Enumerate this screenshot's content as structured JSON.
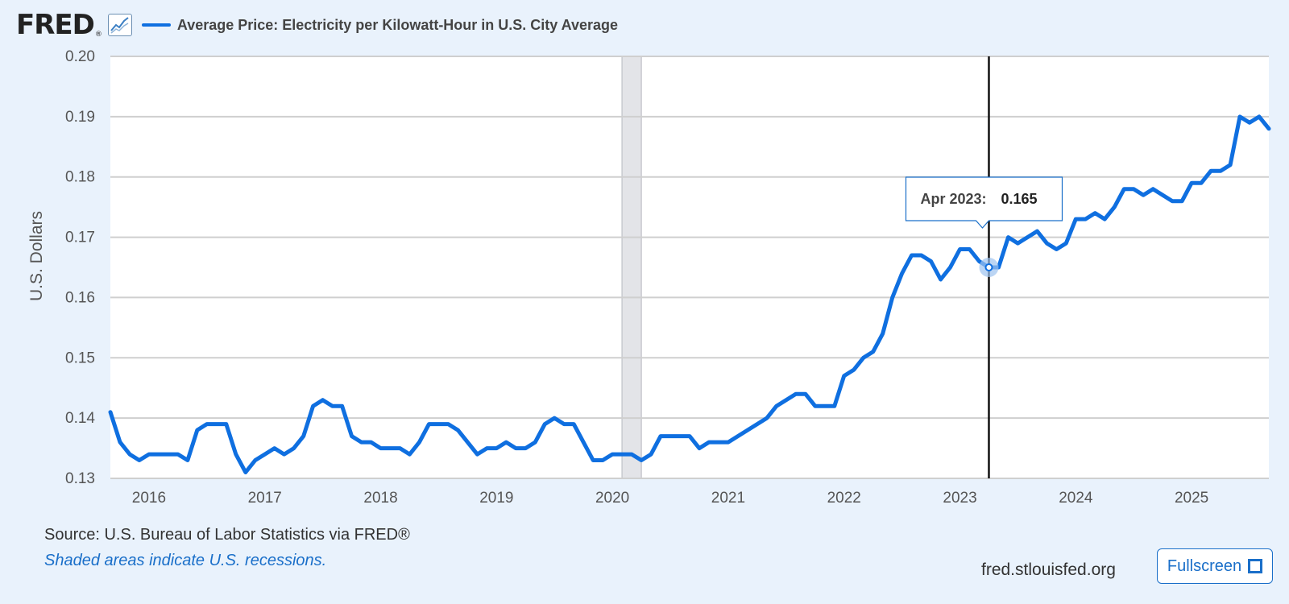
{
  "header": {
    "logo": "FRED",
    "logo_mark": "®",
    "legend_label": "Average Price: Electricity per Kilowatt-Hour in U.S. City Average"
  },
  "tooltip": {
    "date": "Apr 2023:",
    "value": "0.165"
  },
  "footer": {
    "source": "Source: U.S. Bureau of Labor Statistics via FRED®",
    "note": "Shaded areas indicate U.S. recessions.",
    "site": "fred.stlouisfed.org",
    "fullscreen_label": "Fullscreen"
  },
  "colors": {
    "line": "#0f6fe0",
    "recession": "#e3e4e8",
    "background": "#e9f2fc"
  },
  "chart_data": {
    "type": "line",
    "title": "",
    "xlabel": "",
    "ylabel": "U.S. Dollars",
    "x_ticks": [
      "2016",
      "2017",
      "2018",
      "2019",
      "2020",
      "2021",
      "2022",
      "2023",
      "2024",
      "2025"
    ],
    "y_ticks": [
      "0.13",
      "0.14",
      "0.15",
      "0.16",
      "0.17",
      "0.18",
      "0.19",
      "0.20"
    ],
    "ylim": [
      0.13,
      0.2
    ],
    "xlim": [
      "2015-09",
      "2025-09"
    ],
    "grid": "horizontal",
    "legend_position": "top-left",
    "recessions": [
      {
        "start": "2020-02",
        "end": "2020-04"
      }
    ],
    "highlight": {
      "date": "2023-04",
      "value": 0.165
    },
    "series": [
      {
        "name": "Average Price: Electricity per Kilowatt-Hour in U.S. City Average",
        "points": [
          [
            "2015-09",
            0.141
          ],
          [
            "2015-10",
            0.136
          ],
          [
            "2015-11",
            0.134
          ],
          [
            "2015-12",
            0.133
          ],
          [
            "2016-01",
            0.134
          ],
          [
            "2016-02",
            0.134
          ],
          [
            "2016-03",
            0.134
          ],
          [
            "2016-04",
            0.134
          ],
          [
            "2016-05",
            0.133
          ],
          [
            "2016-06",
            0.138
          ],
          [
            "2016-07",
            0.139
          ],
          [
            "2016-08",
            0.139
          ],
          [
            "2016-09",
            0.139
          ],
          [
            "2016-10",
            0.134
          ],
          [
            "2016-11",
            0.131
          ],
          [
            "2016-12",
            0.133
          ],
          [
            "2017-01",
            0.134
          ],
          [
            "2017-02",
            0.135
          ],
          [
            "2017-03",
            0.134
          ],
          [
            "2017-04",
            0.135
          ],
          [
            "2017-05",
            0.137
          ],
          [
            "2017-06",
            0.142
          ],
          [
            "2017-07",
            0.143
          ],
          [
            "2017-08",
            0.142
          ],
          [
            "2017-09",
            0.142
          ],
          [
            "2017-10",
            0.137
          ],
          [
            "2017-11",
            0.136
          ],
          [
            "2017-12",
            0.136
          ],
          [
            "2018-01",
            0.135
          ],
          [
            "2018-02",
            0.135
          ],
          [
            "2018-03",
            0.135
          ],
          [
            "2018-04",
            0.134
          ],
          [
            "2018-05",
            0.136
          ],
          [
            "2018-06",
            0.139
          ],
          [
            "2018-07",
            0.139
          ],
          [
            "2018-08",
            0.139
          ],
          [
            "2018-09",
            0.138
          ],
          [
            "2018-10",
            0.136
          ],
          [
            "2018-11",
            0.134
          ],
          [
            "2018-12",
            0.135
          ],
          [
            "2019-01",
            0.135
          ],
          [
            "2019-02",
            0.136
          ],
          [
            "2019-03",
            0.135
          ],
          [
            "2019-04",
            0.135
          ],
          [
            "2019-05",
            0.136
          ],
          [
            "2019-06",
            0.139
          ],
          [
            "2019-07",
            0.14
          ],
          [
            "2019-08",
            0.139
          ],
          [
            "2019-09",
            0.139
          ],
          [
            "2019-10",
            0.136
          ],
          [
            "2019-11",
            0.133
          ],
          [
            "2019-12",
            0.133
          ],
          [
            "2020-01",
            0.134
          ],
          [
            "2020-02",
            0.134
          ],
          [
            "2020-03",
            0.134
          ],
          [
            "2020-04",
            0.133
          ],
          [
            "2020-05",
            0.134
          ],
          [
            "2020-06",
            0.137
          ],
          [
            "2020-07",
            0.137
          ],
          [
            "2020-08",
            0.137
          ],
          [
            "2020-09",
            0.137
          ],
          [
            "2020-10",
            0.135
          ],
          [
            "2020-11",
            0.136
          ],
          [
            "2020-12",
            0.136
          ],
          [
            "2021-01",
            0.136
          ],
          [
            "2021-02",
            0.137
          ],
          [
            "2021-03",
            0.138
          ],
          [
            "2021-04",
            0.139
          ],
          [
            "2021-05",
            0.14
          ],
          [
            "2021-06",
            0.142
          ],
          [
            "2021-07",
            0.143
          ],
          [
            "2021-08",
            0.144
          ],
          [
            "2021-09",
            0.144
          ],
          [
            "2021-10",
            0.142
          ],
          [
            "2021-11",
            0.142
          ],
          [
            "2021-12",
            0.142
          ],
          [
            "2022-01",
            0.147
          ],
          [
            "2022-02",
            0.148
          ],
          [
            "2022-03",
            0.15
          ],
          [
            "2022-04",
            0.151
          ],
          [
            "2022-05",
            0.154
          ],
          [
            "2022-06",
            0.16
          ],
          [
            "2022-07",
            0.164
          ],
          [
            "2022-08",
            0.167
          ],
          [
            "2022-09",
            0.167
          ],
          [
            "2022-10",
            0.166
          ],
          [
            "2022-11",
            0.163
          ],
          [
            "2022-12",
            0.165
          ],
          [
            "2023-01",
            0.168
          ],
          [
            "2023-02",
            0.168
          ],
          [
            "2023-03",
            0.166
          ],
          [
            "2023-04",
            0.165
          ],
          [
            "2023-05",
            0.165
          ],
          [
            "2023-06",
            0.17
          ],
          [
            "2023-07",
            0.169
          ],
          [
            "2023-08",
            0.17
          ],
          [
            "2023-09",
            0.171
          ],
          [
            "2023-10",
            0.169
          ],
          [
            "2023-11",
            0.168
          ],
          [
            "2023-12",
            0.169
          ],
          [
            "2024-01",
            0.173
          ],
          [
            "2024-02",
            0.173
          ],
          [
            "2024-03",
            0.174
          ],
          [
            "2024-04",
            0.173
          ],
          [
            "2024-05",
            0.175
          ],
          [
            "2024-06",
            0.178
          ],
          [
            "2024-07",
            0.178
          ],
          [
            "2024-08",
            0.177
          ],
          [
            "2024-09",
            0.178
          ],
          [
            "2024-10",
            0.177
          ],
          [
            "2024-11",
            0.176
          ],
          [
            "2024-12",
            0.176
          ],
          [
            "2025-01",
            0.179
          ],
          [
            "2025-02",
            0.179
          ],
          [
            "2025-03",
            0.181
          ],
          [
            "2025-04",
            0.181
          ],
          [
            "2025-05",
            0.182
          ],
          [
            "2025-06",
            0.19
          ],
          [
            "2025-07",
            0.189
          ],
          [
            "2025-08",
            0.19
          ],
          [
            "2025-09",
            0.188
          ]
        ]
      }
    ]
  }
}
